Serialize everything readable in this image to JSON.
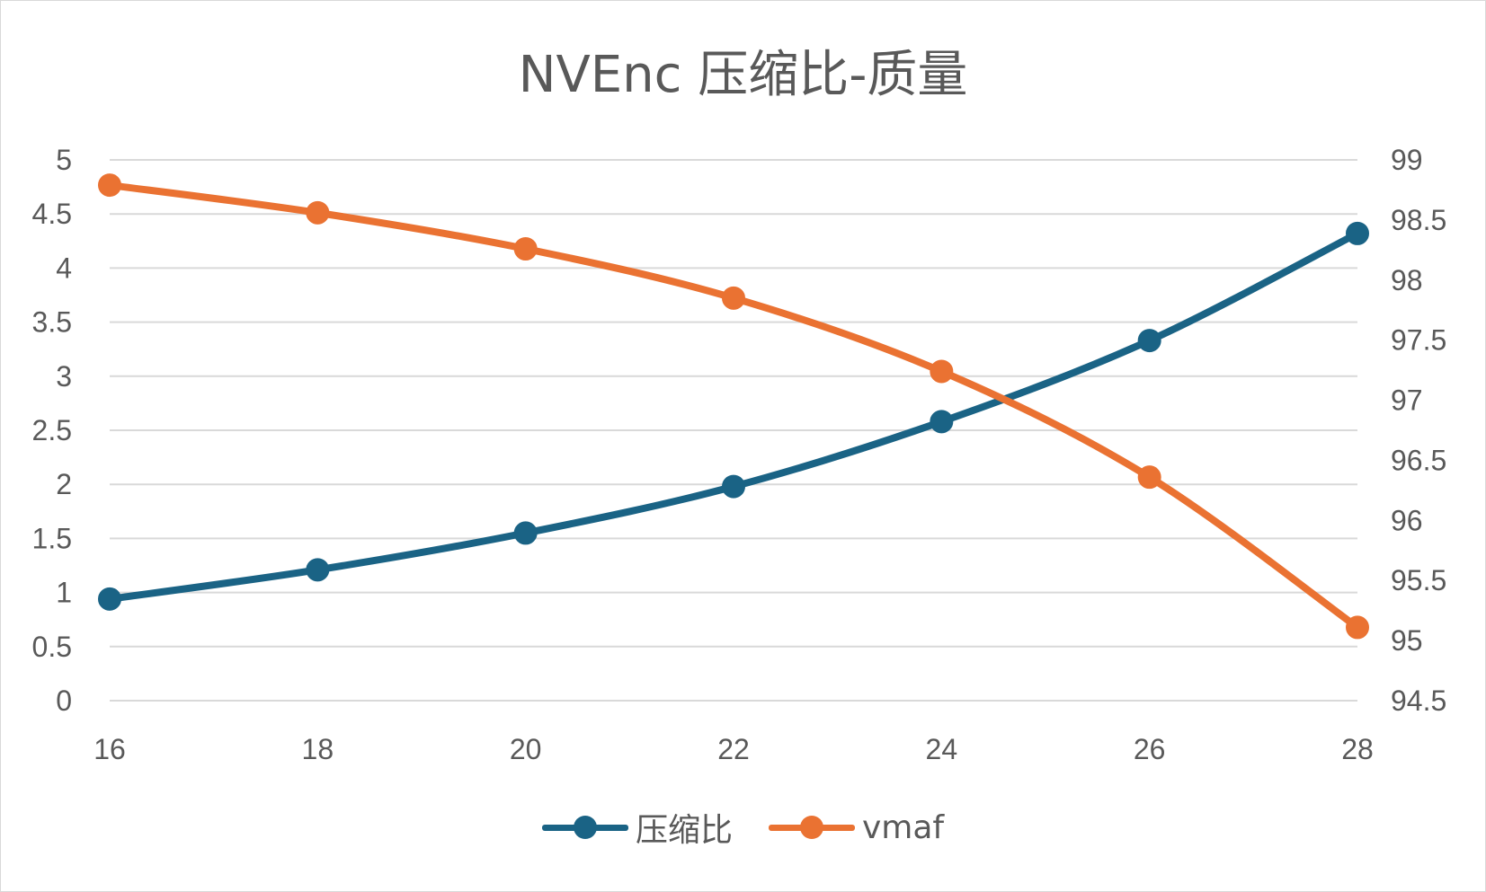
{
  "chart_data": {
    "type": "line",
    "title": "NVEnc 压缩比-质量",
    "x": [
      16,
      18,
      20,
      22,
      24,
      26,
      28
    ],
    "x_ticks": [
      "16",
      "18",
      "20",
      "22",
      "24",
      "26",
      "28"
    ],
    "y_left": {
      "ylim": [
        0,
        5
      ],
      "ticks": [
        "0",
        "0.5",
        "1",
        "1.5",
        "2",
        "2.5",
        "3",
        "3.5",
        "4",
        "4.5",
        "5"
      ]
    },
    "y_right": {
      "ylim": [
        94.5,
        99
      ],
      "ticks": [
        "94.5",
        "95",
        "95.5",
        "96",
        "96.5",
        "97",
        "97.5",
        "98",
        "98.5",
        "99"
      ]
    },
    "series": [
      {
        "name": "压缩比",
        "axis": "left",
        "color": "#1a6385",
        "values": [
          0.94,
          1.21,
          1.55,
          1.98,
          2.58,
          3.33,
          4.32
        ]
      },
      {
        "name": "vmaf",
        "axis": "right",
        "color": "#ea7232",
        "values": [
          98.79,
          98.56,
          98.26,
          97.85,
          97.24,
          96.36,
          95.11
        ]
      }
    ],
    "grid": true,
    "legend": "bottom",
    "smooth": true
  }
}
